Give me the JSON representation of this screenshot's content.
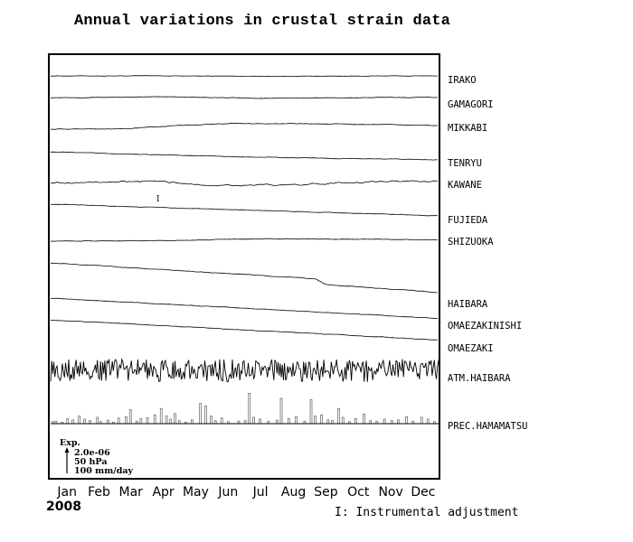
{
  "chart_data": {
    "type": "line",
    "title": "Annual variations in crustal strain data",
    "year": "2008",
    "categories": [
      "Jan",
      "Feb",
      "Mar",
      "Apr",
      "May",
      "Jun",
      "Jul",
      "Aug",
      "Sep",
      "Oct",
      "Nov",
      "Dec"
    ],
    "x_unit": "day of year",
    "xlim": [
      1,
      366
    ],
    "series": [
      {
        "name": "IRAKO",
        "trend": [
          [
            0,
            0
          ],
          [
            100,
            0
          ],
          [
            200,
            -0.05
          ],
          [
            366,
            0
          ]
        ],
        "noise": 0.08
      },
      {
        "name": "GAMAGORI",
        "trend": [
          [
            0,
            0
          ],
          [
            120,
            0.1
          ],
          [
            200,
            -0.1
          ],
          [
            366,
            0.05
          ]
        ],
        "noise": 0.1
      },
      {
        "name": "MIKKABI",
        "trend": [
          [
            0,
            0
          ],
          [
            70,
            0.05
          ],
          [
            120,
            0.5
          ],
          [
            170,
            0.8
          ],
          [
            250,
            0.75
          ],
          [
            366,
            0.5
          ]
        ],
        "noise": 0.12
      },
      {
        "name": "TENRYU",
        "trend": [
          [
            0,
            0
          ],
          [
            120,
            -0.5
          ],
          [
            250,
            -0.9
          ],
          [
            366,
            -1.1
          ]
        ],
        "noise": 0.1
      },
      {
        "name": "KAWANE",
        "trend": [
          [
            0,
            0
          ],
          [
            100,
            0.1
          ],
          [
            150,
            -0.3
          ],
          [
            220,
            -0.4
          ],
          [
            300,
            0.1
          ],
          [
            366,
            0.2
          ]
        ],
        "noise": 0.3
      },
      {
        "name": "FUJIEDA",
        "trend": [
          [
            0,
            0
          ],
          [
            366,
            -1.6
          ]
        ],
        "noise": 0.08
      },
      {
        "name": "SHIZUOKA",
        "trend": [
          [
            0,
            0
          ],
          [
            120,
            0.1
          ],
          [
            200,
            0.35
          ],
          [
            366,
            0.2
          ]
        ],
        "noise": 0.1
      },
      {
        "name": "HAIBARA",
        "trend": [
          [
            0,
            0
          ],
          [
            250,
            -2.2
          ],
          [
            260,
            -3.0
          ],
          [
            366,
            -4.1
          ]
        ],
        "noise": 0.1
      },
      {
        "name": "OMAEZAKINISHI",
        "trend": [
          [
            0,
            0
          ],
          [
            366,
            -2.8
          ]
        ],
        "noise": 0.1
      },
      {
        "name": "OMAEZAKI",
        "trend": [
          [
            0,
            0
          ],
          [
            366,
            -2.8
          ]
        ],
        "noise": 0.1
      },
      {
        "name": "ATM.HAIBARA",
        "trend": [
          [
            0,
            0
          ],
          [
            366,
            0
          ]
        ],
        "noise": 1.0
      },
      {
        "name": "PREC.HAMAMATSU",
        "bars": [
          [
            3,
            8
          ],
          [
            6,
            10
          ],
          [
            12,
            6
          ],
          [
            17,
            20
          ],
          [
            22,
            15
          ],
          [
            28,
            30
          ],
          [
            33,
            18
          ],
          [
            38,
            12
          ],
          [
            45,
            25
          ],
          [
            48,
            8
          ],
          [
            55,
            14
          ],
          [
            60,
            6
          ],
          [
            65,
            22
          ],
          [
            72,
            28
          ],
          [
            76,
            55
          ],
          [
            82,
            10
          ],
          [
            86,
            20
          ],
          [
            92,
            24
          ],
          [
            99,
            35
          ],
          [
            105,
            60
          ],
          [
            110,
            30
          ],
          [
            114,
            18
          ],
          [
            118,
            40
          ],
          [
            122,
            12
          ],
          [
            128,
            6
          ],
          [
            134,
            15
          ],
          [
            142,
            80
          ],
          [
            147,
            70
          ],
          [
            152,
            30
          ],
          [
            156,
            12
          ],
          [
            162,
            22
          ],
          [
            168,
            8
          ],
          [
            178,
            10
          ],
          [
            184,
            12
          ],
          [
            188,
            120
          ],
          [
            192,
            25
          ],
          [
            198,
            18
          ],
          [
            206,
            10
          ],
          [
            214,
            14
          ],
          [
            218,
            100
          ],
          [
            225,
            20
          ],
          [
            232,
            28
          ],
          [
            240,
            10
          ],
          [
            246,
            95
          ],
          [
            250,
            30
          ],
          [
            256,
            35
          ],
          [
            262,
            15
          ],
          [
            266,
            12
          ],
          [
            272,
            60
          ],
          [
            276,
            25
          ],
          [
            282,
            8
          ],
          [
            288,
            20
          ],
          [
            296,
            38
          ],
          [
            302,
            12
          ],
          [
            308,
            10
          ],
          [
            315,
            18
          ],
          [
            322,
            12
          ],
          [
            328,
            15
          ],
          [
            336,
            28
          ],
          [
            342,
            10
          ],
          [
            350,
            25
          ],
          [
            356,
            18
          ],
          [
            362,
            8
          ]
        ]
      }
    ],
    "scale": {
      "label": "Exp.",
      "strain": "2.0e-06",
      "pressure": "50 hPa",
      "rain": "100 mm/day"
    },
    "annotation_mark": "I",
    "footnote": "I: Instrumental adjustment",
    "grid": false
  }
}
